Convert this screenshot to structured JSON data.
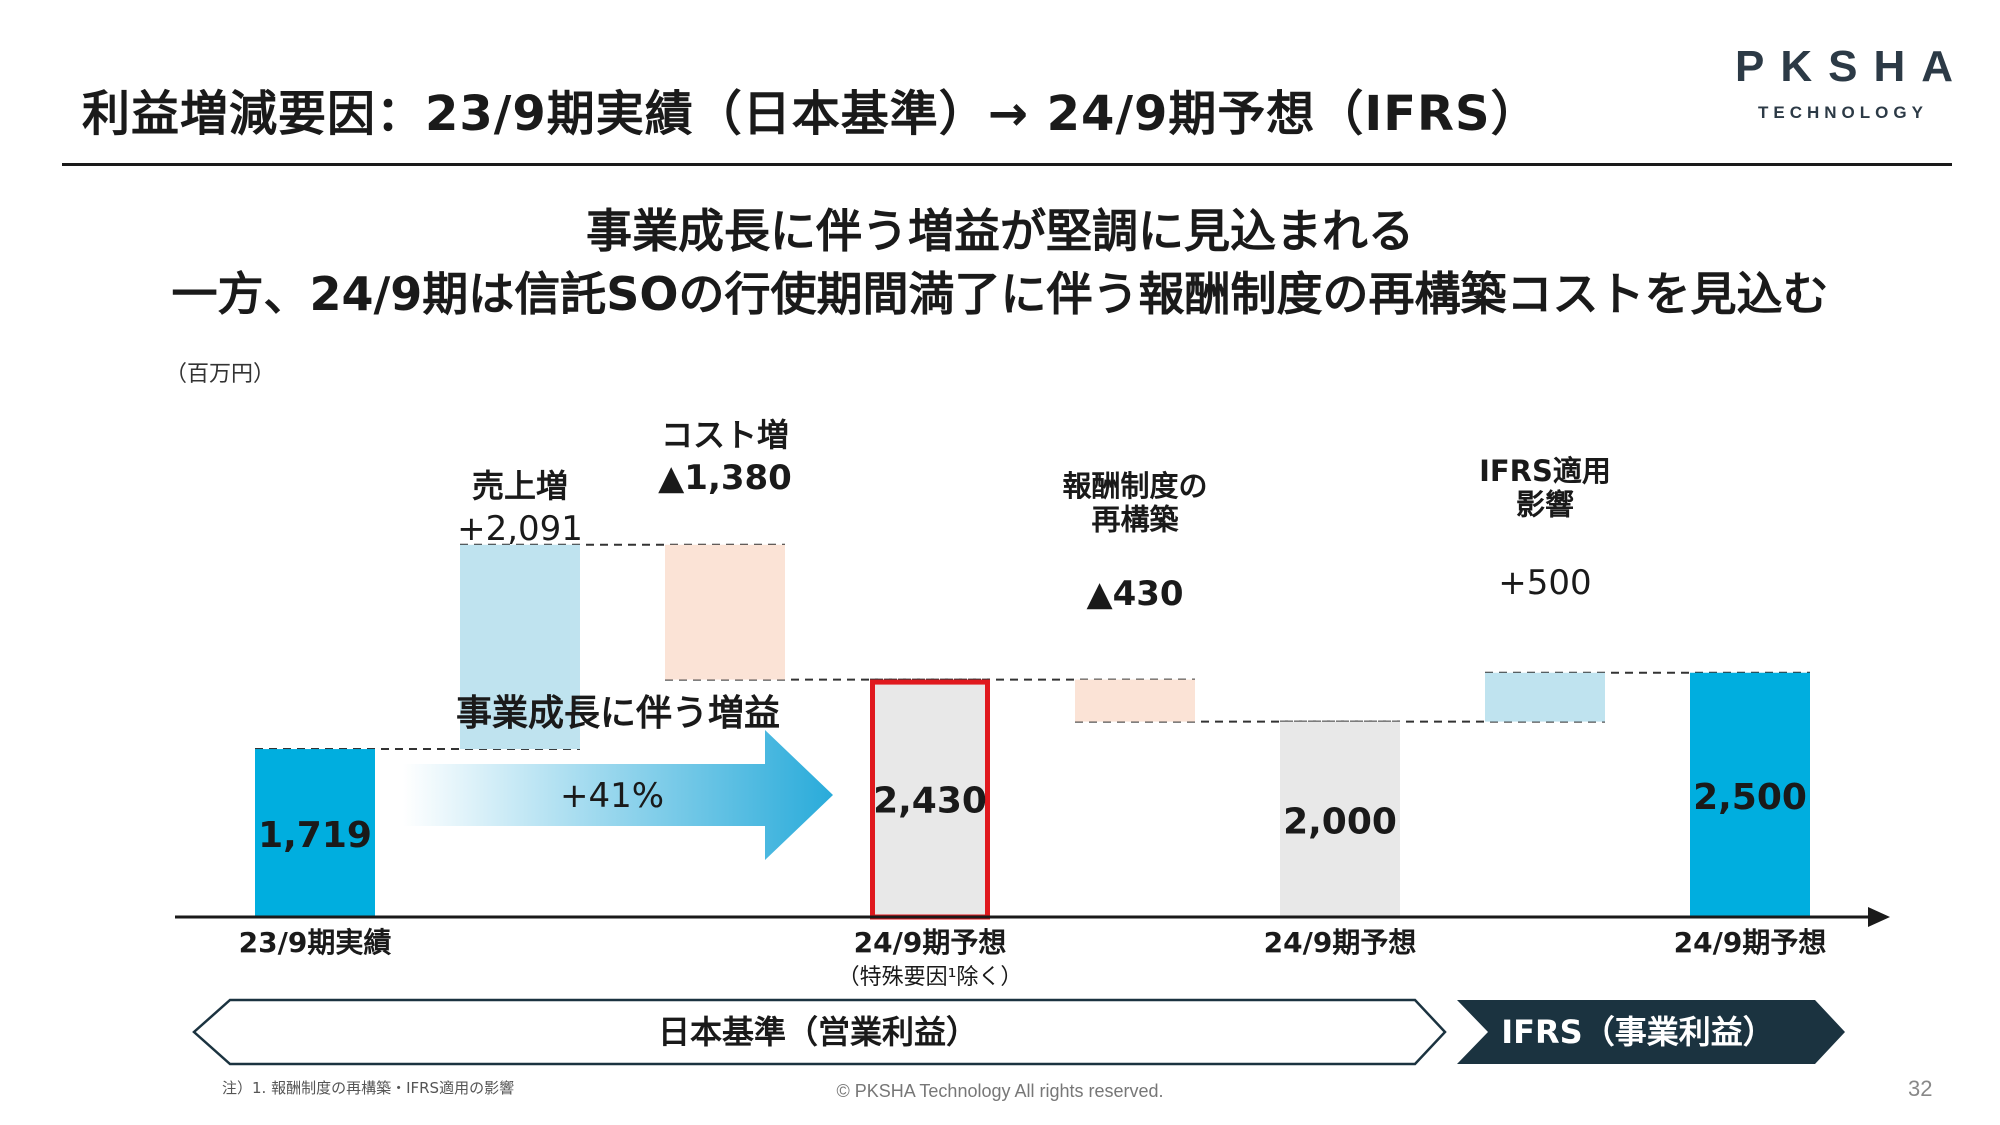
{
  "header": {
    "title": "利益増減要因：23/9期実績（日本基準）→ 24/9期予想（IFRS）",
    "logo_main": "PKSHA",
    "logo_sub": "TECHNOLOGY"
  },
  "headline": {
    "line1": "事業成長に伴う増益が堅調に見込まれる",
    "line2": "一方、24/9期は信託SOの行使期間満了に伴う報酬制度の再構築コストを見込む"
  },
  "colors": {
    "result_bar": "#00AEDF",
    "increase_bar": "#BFE3EF",
    "decrease_bar": "#FBE3D6",
    "forecast_bar": "#E8E8E8",
    "highlight_border": "#E0191E",
    "dark_band": "#1B3340",
    "arrow_dark": "#29ABDA"
  },
  "chart_data": {
    "type": "waterfall",
    "unit": "（百万円）",
    "bars": [
      {
        "id": "fy23-actual",
        "kind": "total",
        "start": 0,
        "end": 1719,
        "label": "1,719"
      },
      {
        "id": "sales-increase",
        "kind": "increase",
        "start": 1719,
        "end": 3810,
        "name": "売上増",
        "label": "+2,091"
      },
      {
        "id": "cost-increase",
        "kind": "decrease",
        "start": 3810,
        "end": 2430,
        "name": "コスト増",
        "label": "▲1,380"
      },
      {
        "id": "fy24-ex-special",
        "kind": "total-highlight",
        "start": 0,
        "end": 2430,
        "label": "2,430"
      },
      {
        "id": "comp-restructure",
        "kind": "decrease",
        "start": 2430,
        "end": 2000,
        "name": "報酬制度の\n再構築",
        "label": "▲430"
      },
      {
        "id": "fy24-forecast-jgaap",
        "kind": "total-gray",
        "start": 0,
        "end": 2000,
        "label": "2,000"
      },
      {
        "id": "ifrs-impact",
        "kind": "increase",
        "start": 2000,
        "end": 2500,
        "name": "IFRS適用\n影響",
        "label": "+500"
      },
      {
        "id": "fy24-forecast-ifrs",
        "kind": "total",
        "start": 0,
        "end": 2500,
        "label": "2,500"
      }
    ],
    "x_labels": [
      {
        "bar": "fy23-actual",
        "text": "23/9期実績",
        "sub": ""
      },
      {
        "bar": "fy24-ex-special",
        "text": "24/9期予想",
        "sub": "（特殊要因¹除く）"
      },
      {
        "bar": "fy24-forecast-jgaap",
        "text": "24/9期予想",
        "sub": ""
      },
      {
        "bar": "fy24-forecast-ifrs",
        "text": "24/9期予想",
        "sub": ""
      }
    ],
    "growth_arrow": {
      "title": "事業成長に伴う増益",
      "label": "+41%"
    },
    "bands": [
      {
        "label": "日本基準（営業利益）",
        "style": "outline"
      },
      {
        "label": "IFRS（事業利益）",
        "style": "filled"
      }
    ]
  },
  "footer": {
    "note": "注）1. 報酬制度の再構築・IFRS適用の影響",
    "copyright": "© PKSHA Technology All rights reserved.",
    "page": "32"
  }
}
